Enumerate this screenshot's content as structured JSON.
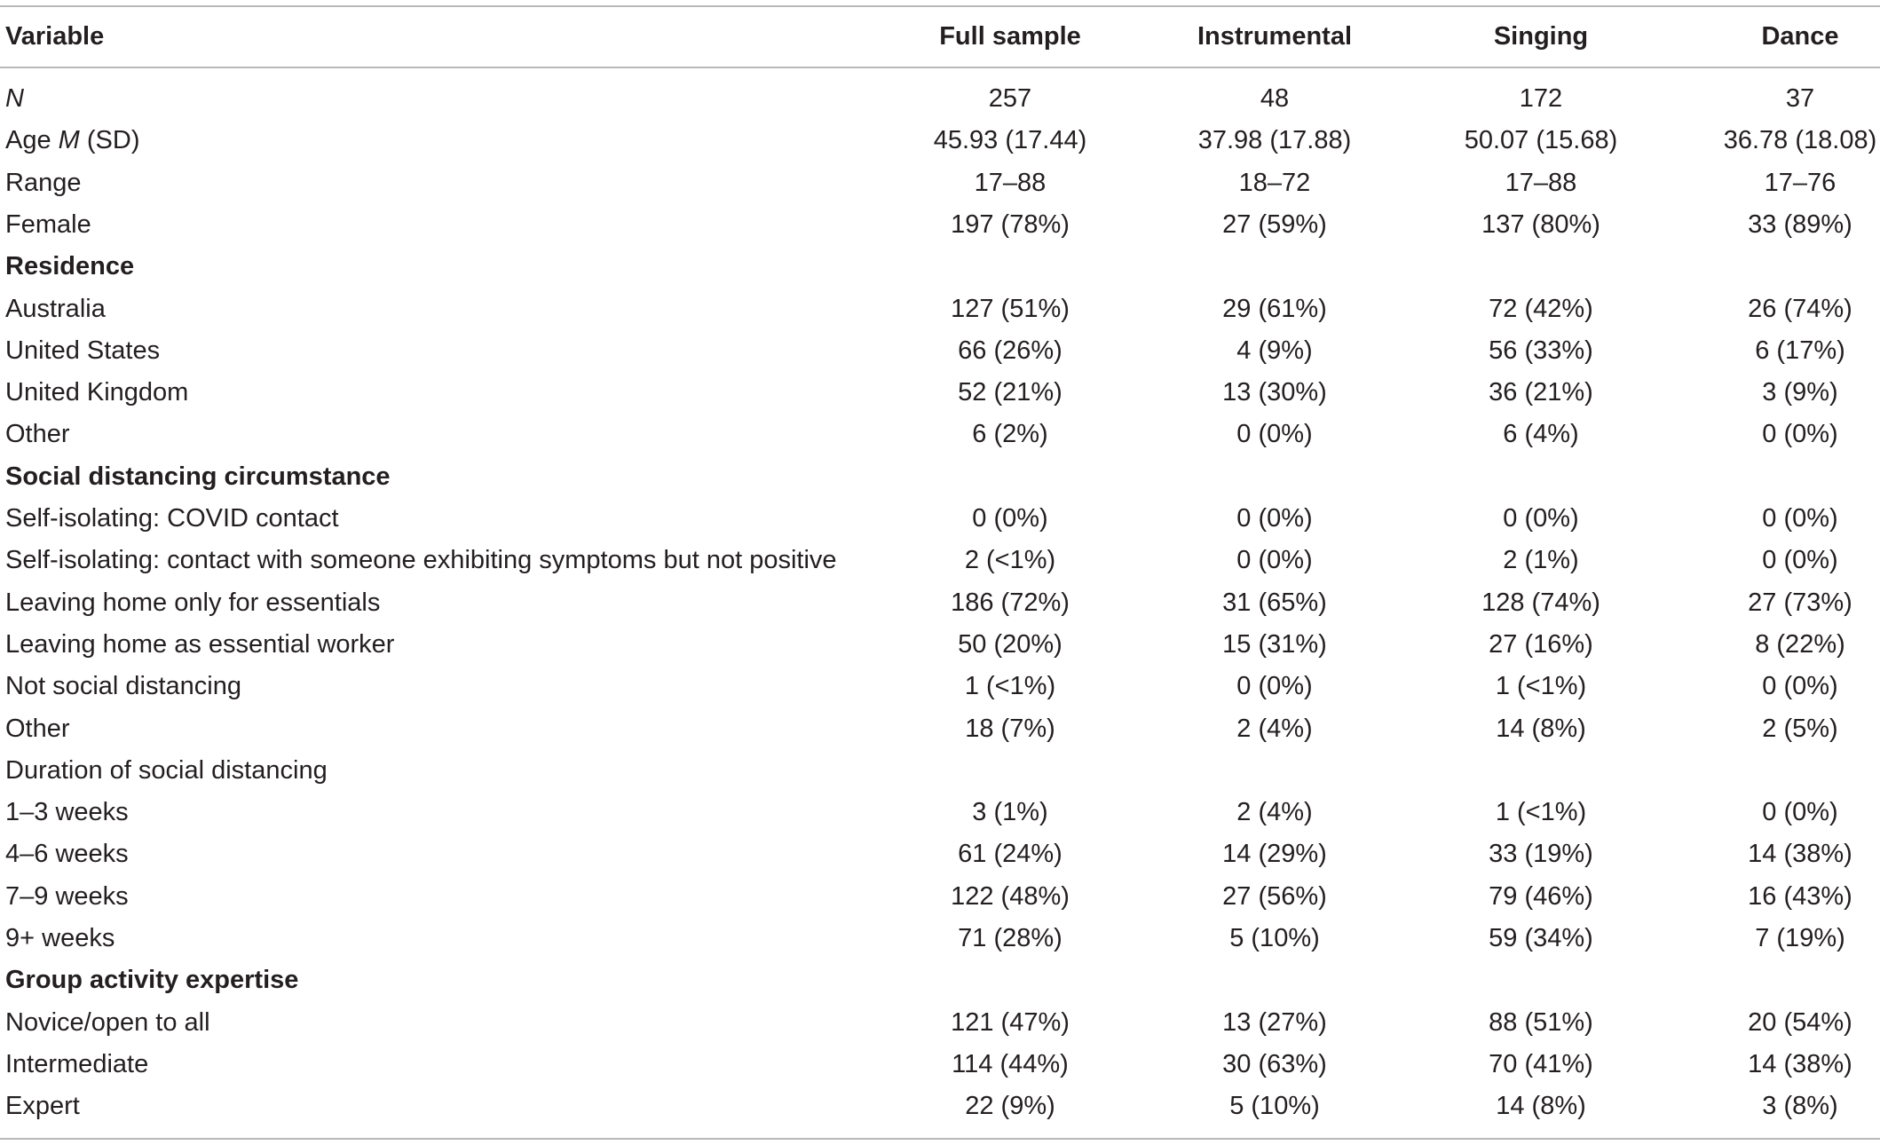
{
  "table": {
    "headers": [
      "Variable",
      "Full sample",
      "Instrumental",
      "Singing",
      "Dance"
    ],
    "rows": [
      {
        "label": "N",
        "italic": true,
        "values": [
          "257",
          "48",
          "172",
          "37"
        ]
      },
      {
        "label_parts": [
          "Age ",
          "M",
          " (SD)"
        ],
        "values": [
          "45.93 (17.44)",
          "37.98 (17.88)",
          "50.07 (15.68)",
          "36.78 (18.08)"
        ]
      },
      {
        "label": "Range",
        "values": [
          "17–88",
          "18–72",
          "17–88",
          "17–76"
        ]
      },
      {
        "label": "Female",
        "values": [
          "197 (78%)",
          "27 (59%)",
          "137 (80%)",
          "33 (89%)"
        ]
      },
      {
        "label": "Residence",
        "section": true,
        "values": [
          "",
          "",
          "",
          ""
        ]
      },
      {
        "label": "Australia",
        "values": [
          "127 (51%)",
          "29 (61%)",
          "72 (42%)",
          "26 (74%)"
        ]
      },
      {
        "label": "United States",
        "values": [
          "66 (26%)",
          "4 (9%)",
          "56 (33%)",
          "6 (17%)"
        ]
      },
      {
        "label": "United Kingdom",
        "values": [
          "52 (21%)",
          "13 (30%)",
          "36 (21%)",
          "3 (9%)"
        ]
      },
      {
        "label": "Other",
        "values": [
          "6 (2%)",
          "0 (0%)",
          "6 (4%)",
          "0 (0%)"
        ]
      },
      {
        "label": "Social distancing circumstance",
        "section": true,
        "values": [
          "",
          "",
          "",
          ""
        ]
      },
      {
        "label": "Self-isolating: COVID contact",
        "values": [
          "0 (0%)",
          "0 (0%)",
          "0 (0%)",
          "0 (0%)"
        ]
      },
      {
        "label": "Self-isolating: contact with someone exhibiting symptoms but not positive",
        "values": [
          "2 (<1%)",
          "0 (0%)",
          "2 (1%)",
          "0 (0%)"
        ]
      },
      {
        "label": "Leaving home only for essentials",
        "values": [
          "186 (72%)",
          "31 (65%)",
          "128 (74%)",
          "27 (73%)"
        ]
      },
      {
        "label": "Leaving home as essential worker",
        "values": [
          "50 (20%)",
          "15 (31%)",
          "27 (16%)",
          "8 (22%)"
        ]
      },
      {
        "label": "Not social distancing",
        "values": [
          "1 (<1%)",
          "0 (0%)",
          "1 (<1%)",
          "0 (0%)"
        ]
      },
      {
        "label": "Other",
        "values": [
          "18 (7%)",
          "2 (4%)",
          "14 (8%)",
          "2 (5%)"
        ]
      },
      {
        "label": "Duration of social distancing",
        "values": [
          "",
          "",
          "",
          ""
        ]
      },
      {
        "label": "1–3 weeks",
        "values": [
          "3 (1%)",
          "2 (4%)",
          "1 (<1%)",
          "0 (0%)"
        ]
      },
      {
        "label": "4–6 weeks",
        "values": [
          "61 (24%)",
          "14 (29%)",
          "33 (19%)",
          "14 (38%)"
        ]
      },
      {
        "label": "7–9 weeks",
        "values": [
          "122 (48%)",
          "27 (56%)",
          "79 (46%)",
          "16 (43%)"
        ]
      },
      {
        "label": "9+ weeks",
        "values": [
          "71 (28%)",
          "5 (10%)",
          "59 (34%)",
          "7 (19%)"
        ]
      },
      {
        "label": "Group activity expertise",
        "section": true,
        "values": [
          "",
          "",
          "",
          ""
        ]
      },
      {
        "label": "Novice/open to all",
        "values": [
          "121 (47%)",
          "13 (27%)",
          "88 (51%)",
          "20 (54%)"
        ]
      },
      {
        "label": "Intermediate",
        "values": [
          "114 (44%)",
          "30 (63%)",
          "70 (41%)",
          "14 (38%)"
        ]
      },
      {
        "label": "Expert",
        "values": [
          "22 (9%)",
          "5 (10%)",
          "14 (8%)",
          "3 (8%)"
        ]
      }
    ]
  },
  "colors": {
    "text": "#231f20",
    "rule": "#b9b9b9",
    "background": "#ffffff"
  }
}
